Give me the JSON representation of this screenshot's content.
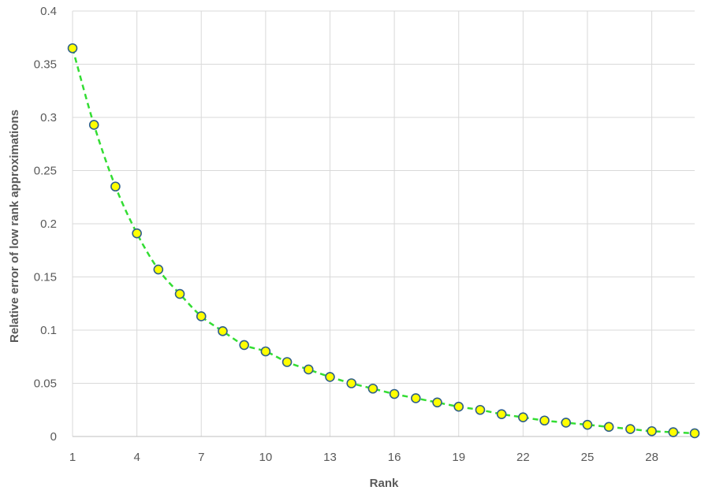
{
  "chart_data": {
    "type": "line",
    "title": "",
    "xlabel": "Rank",
    "ylabel": "Relative error of low rank approximations",
    "xlim": [
      1,
      30
    ],
    "ylim": [
      0,
      0.4
    ],
    "x_ticks": [
      1,
      4,
      7,
      10,
      13,
      16,
      19,
      22,
      25,
      28
    ],
    "y_ticks": [
      "0",
      "0.05",
      "0.1",
      "0.15",
      "0.2",
      "0.25",
      "0.3",
      "0.35",
      "0.4"
    ],
    "grid": true,
    "legend": "none",
    "line_color": "#33dd33",
    "marker_fill": "#ffff00",
    "marker_edge": "#2e5f8a",
    "series": [
      {
        "x": [
          1,
          2,
          3,
          4,
          5,
          6,
          7,
          8,
          9,
          10,
          11,
          12,
          13,
          14,
          15,
          16,
          17,
          18,
          19,
          20,
          21,
          22,
          23,
          24,
          25,
          26,
          27,
          28,
          29,
          30
        ],
        "values": [
          0.365,
          0.293,
          0.235,
          0.191,
          0.157,
          0.134,
          0.113,
          0.099,
          0.086,
          0.08,
          0.07,
          0.063,
          0.056,
          0.05,
          0.045,
          0.04,
          0.036,
          0.032,
          0.028,
          0.025,
          0.021,
          0.018,
          0.015,
          0.013,
          0.011,
          0.009,
          0.007,
          0.005,
          0.004,
          0.003
        ]
      }
    ]
  }
}
